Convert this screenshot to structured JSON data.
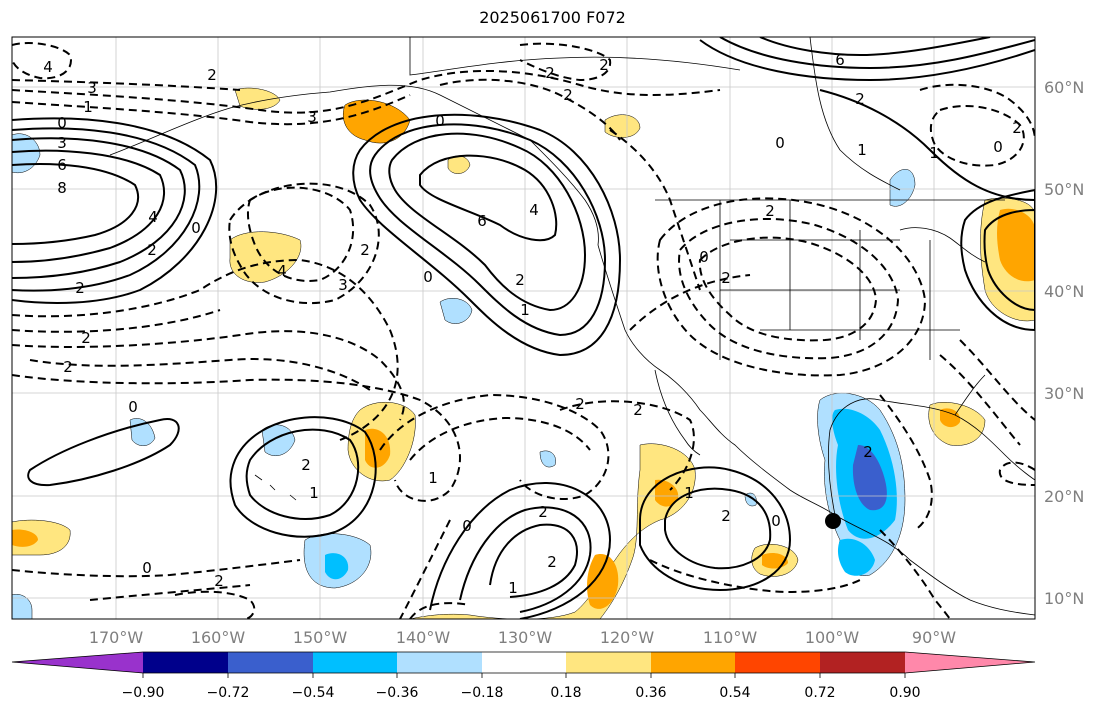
{
  "title": "2025061700 F072",
  "lon_labels": [
    "170°W",
    "160°W",
    "150°W",
    "140°W",
    "130°W",
    "120°W",
    "110°W",
    "100°W",
    "90°W"
  ],
  "lat_labels": [
    "60°N",
    "50°N",
    "40°N",
    "30°N",
    "20°N",
    "10°N"
  ],
  "colorbar": {
    "ticks": [
      "−0.90",
      "−0.72",
      "−0.54",
      "−0.36",
      "−0.18",
      "0.18",
      "0.36",
      "0.54",
      "0.72",
      "0.90"
    ],
    "colors": [
      "#9932cc",
      "#00008b",
      "#3a5fcd",
      "#00bfff",
      "#b0e0ff",
      "#ffffff",
      "#ffe680",
      "#ffa500",
      "#ff4500",
      "#b22222",
      "#ff88aa"
    ]
  },
  "contour_labels": [
    "4",
    "3",
    "2",
    "1",
    "0",
    "3",
    "6",
    "8",
    "4",
    "2",
    "2",
    "2",
    "0",
    "2",
    "3",
    "0",
    "6",
    "4",
    "2",
    "1",
    "0",
    "4",
    "3",
    "2",
    "2",
    "2",
    "2",
    "6",
    "2",
    "0",
    "1",
    "2",
    "1",
    "0",
    "0",
    "2",
    "2",
    "0",
    "2",
    "2",
    "1",
    "2",
    "1",
    "2",
    "0",
    "1",
    "0",
    "2",
    "2",
    "0",
    "2",
    "2",
    "1"
  ],
  "marker": "black-dot"
}
